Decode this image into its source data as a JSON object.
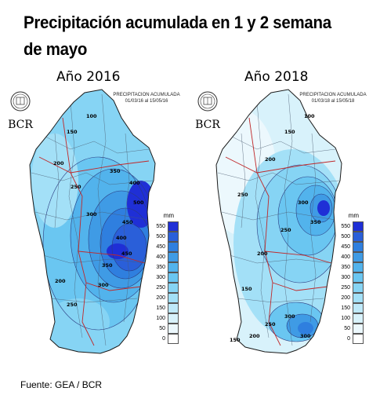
{
  "title": "Precipitación acumulada en 1 y 2 semana de mayo",
  "source": "Fuente: GEA / BCR",
  "maps": [
    {
      "year": "Año 2016",
      "header_line1": "PRECIPITACION ACUMULADA",
      "header_line2": "01/03/16  al  15/05/16",
      "logo_text": "BCR",
      "contour_labels": [
        "500",
        "450",
        "400",
        "350",
        "300",
        "250",
        "200",
        "150",
        "100",
        "300",
        "250",
        "200",
        "350",
        "400",
        "450"
      ]
    },
    {
      "year": "Año 2018",
      "header_line1": "PRECIPITACION ACUMULADA",
      "header_line2": "01/03/18  al  15/05/18",
      "logo_text": "BCR",
      "contour_labels": [
        "250",
        "200",
        "150",
        "100",
        "300",
        "250",
        "200",
        "150",
        "350",
        "300",
        "250",
        "200",
        "150",
        "300"
      ]
    }
  ],
  "legend": {
    "unit": "mm",
    "ticks": [
      "550",
      "500",
      "450",
      "400",
      "350",
      "300",
      "250",
      "200",
      "150",
      "100",
      "50",
      "0"
    ],
    "colors": [
      "#1f2fd6",
      "#2a5fd9",
      "#2f7fdf",
      "#3f9be5",
      "#52b3ec",
      "#6ac6f1",
      "#86d4f4",
      "#a3e0f7",
      "#bfe9f9",
      "#d8f2fb",
      "#ecf8fd",
      "#ffffff"
    ]
  }
}
